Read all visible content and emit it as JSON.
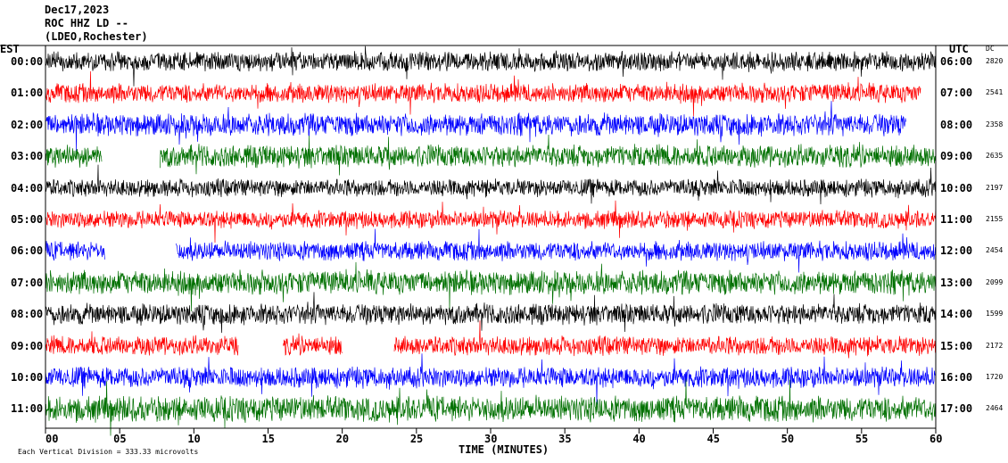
{
  "header": {
    "line1": "Dec17,2023",
    "line2": "ROC HHZ LD --",
    "line3": "(LDEO,Rochester)",
    "left_tz": "EST",
    "right_tz": "UTC",
    "dc_label": "DC"
  },
  "footer": {
    "scale_note": "Each Vertical Division = 333.33 microvolts",
    "x_axis_title": "TIME (MINUTES)"
  },
  "chart_data": {
    "type": "line",
    "title": "Dec17,2023 ROC HHZ LD -- (LDEO,Rochester)",
    "xlabel": "TIME (MINUTES)",
    "ylabel": "",
    "xlim": [
      0,
      60
    ],
    "x_ticks": [
      "00",
      "05",
      "10",
      "15",
      "20",
      "25",
      "30",
      "35",
      "40",
      "45",
      "50",
      "55",
      "60"
    ],
    "trace_colors": [
      "#000000",
      "#ff0000",
      "#0000ff",
      "#007000"
    ],
    "rows": [
      {
        "est": "00:00",
        "utc": "06:00",
        "dc": "2820",
        "color": "#000000",
        "amp": 12,
        "end": 60,
        "gaps": []
      },
      {
        "est": "01:00",
        "utc": "07:00",
        "dc": "2541",
        "color": "#ff0000",
        "amp": 12,
        "end": 59,
        "gaps": []
      },
      {
        "est": "02:00",
        "utc": "08:00",
        "dc": "2358",
        "color": "#0000ff",
        "amp": 14,
        "end": 58,
        "gaps": []
      },
      {
        "est": "03:00",
        "utc": "09:00",
        "dc": "2635",
        "color": "#007000",
        "amp": 14,
        "end": 60,
        "gaps": [
          [
            3.8,
            7.7
          ]
        ]
      },
      {
        "est": "04:00",
        "utc": "10:00",
        "dc": "2197",
        "color": "#000000",
        "amp": 11,
        "end": 60,
        "gaps": []
      },
      {
        "est": "05:00",
        "utc": "11:00",
        "dc": "2155",
        "color": "#ff0000",
        "amp": 11,
        "end": 60,
        "gaps": []
      },
      {
        "est": "06:00",
        "utc": "12:00",
        "dc": "2454",
        "color": "#0000ff",
        "amp": 12,
        "end": 60,
        "gaps": [
          [
            4.0,
            8.8
          ]
        ]
      },
      {
        "est": "07:00",
        "utc": "13:00",
        "dc": "2099",
        "color": "#007000",
        "amp": 15,
        "end": 60,
        "gaps": []
      },
      {
        "est": "08:00",
        "utc": "14:00",
        "dc": "1599",
        "color": "#000000",
        "amp": 13,
        "end": 60,
        "gaps": []
      },
      {
        "est": "09:00",
        "utc": "15:00",
        "dc": "2172",
        "color": "#ff0000",
        "amp": 12,
        "end": 60,
        "gaps": [
          [
            13.0,
            16.0
          ],
          [
            20.0,
            23.5
          ]
        ]
      },
      {
        "est": "10:00",
        "utc": "16:00",
        "dc": "1720",
        "color": "#0000ff",
        "amp": 13,
        "end": 60,
        "gaps": []
      },
      {
        "est": "11:00",
        "utc": "17:00",
        "dc": "2464",
        "color": "#007000",
        "amp": 16,
        "end": 60,
        "gaps": []
      }
    ]
  }
}
